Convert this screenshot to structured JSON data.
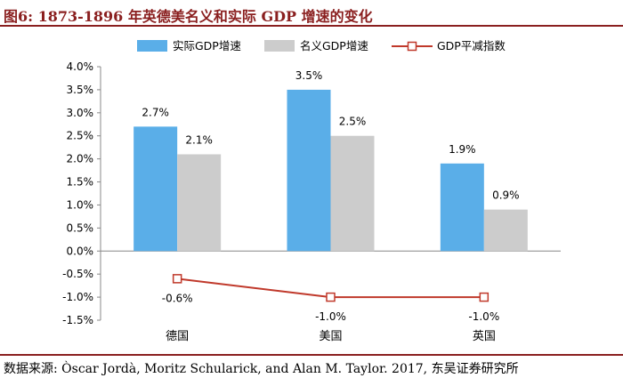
{
  "title": "图6:  1873-1896 年英德美名义和实际 GDP 增速的变化",
  "source": "数据来源: Òscar Jordà, Moritz Schularick, and Alan M. Taylor. 2017, 东吴证券研究所",
  "colors": {
    "real": "#5aaee8",
    "nominal": "#cccccc",
    "index": "#c0392b",
    "accent": "#8a1f1f"
  },
  "chart_data": {
    "type": "bar",
    "title": "图6:  1873-1896 年英德美名义和实际 GDP 增速的变化",
    "xlabel": "",
    "ylabel": "",
    "categories": [
      "德国",
      "美国",
      "英国"
    ],
    "ylim": [
      -1.5,
      4.0
    ],
    "yticks": [
      -1.5,
      -1.0,
      -0.5,
      0.0,
      0.5,
      1.0,
      1.5,
      2.0,
      2.5,
      3.0,
      3.5,
      4.0
    ],
    "ytick_labels": [
      "-1.5%",
      "-1.0%",
      "-0.5%",
      "0.0%",
      "0.5%",
      "1.0%",
      "1.5%",
      "2.0%",
      "2.5%",
      "3.0%",
      "3.5%",
      "4.0%"
    ],
    "legend_position": "top",
    "series": [
      {
        "name": "实际GDP增速",
        "kind": "bar",
        "values": [
          2.7,
          3.5,
          1.9
        ],
        "labels": [
          "2.7%",
          "3.5%",
          "1.9%"
        ]
      },
      {
        "name": "名义GDP增速",
        "kind": "bar",
        "values": [
          2.1,
          2.5,
          0.9
        ],
        "labels": [
          "2.1%",
          "2.5%",
          "0.9%"
        ]
      },
      {
        "name": "GDP平减指数",
        "kind": "line",
        "values": [
          -0.6,
          -1.0,
          -1.0
        ],
        "labels": [
          "-0.6%",
          "-1.0%",
          "-1.0%"
        ]
      }
    ]
  }
}
